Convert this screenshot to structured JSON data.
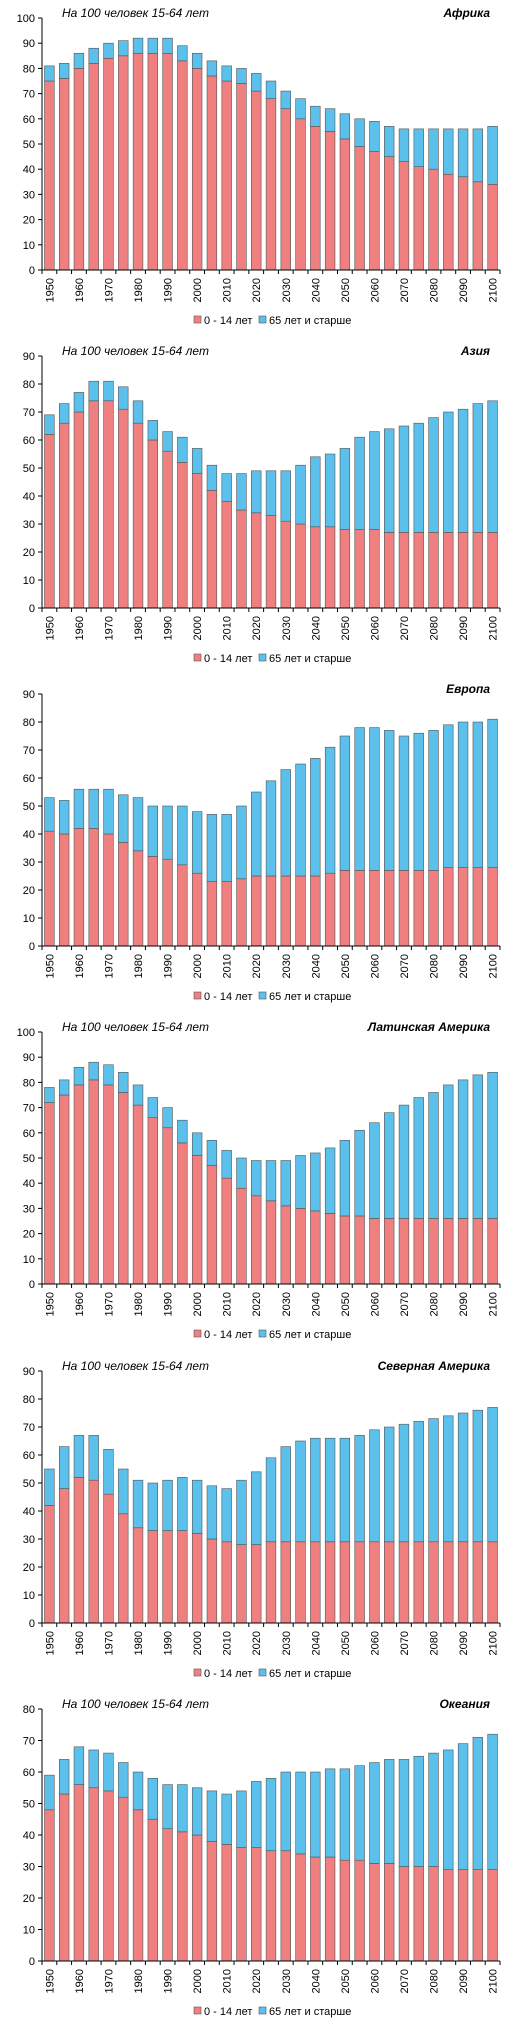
{
  "chart_data": [
    {
      "type": "bar",
      "stacked": true,
      "title": "Африка",
      "subtitle": "На 100 человек 15-64 лет",
      "ylim": [
        0,
        100
      ],
      "yticks": [
        0,
        10,
        20,
        30,
        40,
        50,
        60,
        70,
        80,
        90,
        100
      ],
      "categories": [
        "1950",
        "1955",
        "1960",
        "1965",
        "1970",
        "1975",
        "1980",
        "1985",
        "1990",
        "1995",
        "2000",
        "2005",
        "2010",
        "2015",
        "2020",
        "2025",
        "2030",
        "2035",
        "2040",
        "2045",
        "2050",
        "2055",
        "2060",
        "2065",
        "2070",
        "2075",
        "2080",
        "2085",
        "2090",
        "2095",
        "2100"
      ],
      "xticks": [
        "1950",
        "1960",
        "1970",
        "1980",
        "1990",
        "2000",
        "2010",
        "2020",
        "2030",
        "2040",
        "2050",
        "2060",
        "2070",
        "2080",
        "2090",
        "2100"
      ],
      "series": [
        {
          "name": "0 - 14 лет",
          "color": "#f08080",
          "values": [
            75,
            76,
            80,
            82,
            84,
            85,
            86,
            86,
            86,
            83,
            80,
            77,
            75,
            74,
            71,
            68,
            64,
            60,
            57,
            55,
            52,
            49,
            47,
            45,
            43,
            41,
            40,
            38,
            37,
            35,
            34
          ]
        },
        {
          "name": "65 лет  и старше",
          "color": "#5bc0eb",
          "values": [
            6,
            6,
            6,
            6,
            6,
            6,
            6,
            6,
            6,
            6,
            6,
            6,
            6,
            6,
            7,
            7,
            7,
            8,
            8,
            9,
            10,
            11,
            12,
            12,
            13,
            15,
            16,
            18,
            19,
            21,
            23
          ]
        }
      ],
      "legend_position": "bottom"
    },
    {
      "type": "bar",
      "stacked": true,
      "title": "Азия",
      "subtitle": "На 100 человек 15-64 лет",
      "ylim": [
        0,
        90
      ],
      "yticks": [
        0,
        10,
        20,
        30,
        40,
        50,
        60,
        70,
        80,
        90
      ],
      "categories": [
        "1950",
        "1955",
        "1960",
        "1965",
        "1970",
        "1975",
        "1980",
        "1985",
        "1990",
        "1995",
        "2000",
        "2005",
        "2010",
        "2015",
        "2020",
        "2025",
        "2030",
        "2035",
        "2040",
        "2045",
        "2050",
        "2055",
        "2060",
        "2065",
        "2070",
        "2075",
        "2080",
        "2085",
        "2090",
        "2095",
        "2100"
      ],
      "xticks": [
        "1950",
        "1960",
        "1970",
        "1980",
        "1990",
        "2000",
        "2010",
        "2020",
        "2030",
        "2040",
        "2050",
        "2060",
        "2070",
        "2080",
        "2090",
        "2100"
      ],
      "series": [
        {
          "name": "0 - 14 лет",
          "color": "#f08080",
          "values": [
            62,
            66,
            70,
            74,
            74,
            71,
            66,
            60,
            56,
            52,
            48,
            42,
            38,
            35,
            34,
            33,
            31,
            30,
            29,
            29,
            28,
            28,
            28,
            27,
            27,
            27,
            27,
            27,
            27,
            27,
            27
          ]
        },
        {
          "name": "65 лет  и старше",
          "color": "#5bc0eb",
          "values": [
            7,
            7,
            7,
            7,
            7,
            8,
            8,
            7,
            7,
            9,
            9,
            9,
            10,
            13,
            15,
            16,
            18,
            21,
            25,
            26,
            29,
            33,
            35,
            37,
            38,
            39,
            41,
            43,
            44,
            46,
            47
          ]
        }
      ],
      "legend_position": "bottom"
    },
    {
      "type": "bar",
      "stacked": true,
      "title": "Европа",
      "subtitle": "",
      "ylim": [
        0,
        90
      ],
      "yticks": [
        0,
        10,
        20,
        30,
        40,
        50,
        60,
        70,
        80,
        90
      ],
      "categories": [
        "1950",
        "1955",
        "1960",
        "1965",
        "1970",
        "1975",
        "1980",
        "1985",
        "1990",
        "1995",
        "2000",
        "2005",
        "2010",
        "2015",
        "2020",
        "2025",
        "2030",
        "2035",
        "2040",
        "2045",
        "2050",
        "2055",
        "2060",
        "2065",
        "2070",
        "2075",
        "2080",
        "2085",
        "2090",
        "2095",
        "2100"
      ],
      "xticks": [
        "1950",
        "1960",
        "1970",
        "1980",
        "1990",
        "2000",
        "2010",
        "2020",
        "2030",
        "2040",
        "2050",
        "2060",
        "2070",
        "2080",
        "2090",
        "2100"
      ],
      "series": [
        {
          "name": "0 - 14 лет",
          "color": "#f08080",
          "values": [
            41,
            40,
            42,
            42,
            40,
            37,
            34,
            32,
            31,
            29,
            26,
            23,
            23,
            24,
            25,
            25,
            25,
            25,
            25,
            26,
            27,
            27,
            27,
            27,
            27,
            27,
            27,
            28,
            28,
            28,
            28
          ]
        },
        {
          "name": "65 лет  и старше",
          "color": "#5bc0eb",
          "values": [
            12,
            12,
            14,
            14,
            16,
            17,
            19,
            18,
            19,
            21,
            22,
            24,
            24,
            26,
            30,
            34,
            38,
            40,
            42,
            45,
            48,
            51,
            51,
            50,
            48,
            49,
            50,
            51,
            52,
            52,
            53
          ]
        }
      ],
      "legend_position": "bottom"
    },
    {
      "type": "bar",
      "stacked": true,
      "title": "Латинская Америка",
      "subtitle": "На 100 человек 15-64 лет",
      "ylim": [
        0,
        100
      ],
      "yticks": [
        0,
        10,
        20,
        30,
        40,
        50,
        60,
        70,
        80,
        90,
        100
      ],
      "categories": [
        "1950",
        "1955",
        "1960",
        "1965",
        "1970",
        "1975",
        "1980",
        "1985",
        "1990",
        "1995",
        "2000",
        "2005",
        "2010",
        "2015",
        "2020",
        "2025",
        "2030",
        "2035",
        "2040",
        "2045",
        "2050",
        "2055",
        "2060",
        "2065",
        "2070",
        "2075",
        "2080",
        "2085",
        "2090",
        "2095",
        "2100"
      ],
      "xticks": [
        "1950",
        "1960",
        "1970",
        "1980",
        "1990",
        "2000",
        "2010",
        "2020",
        "2030",
        "2040",
        "2050",
        "2060",
        "2070",
        "2080",
        "2090",
        "2100"
      ],
      "series": [
        {
          "name": "0 - 14 лет",
          "color": "#f08080",
          "values": [
            72,
            75,
            79,
            81,
            79,
            76,
            71,
            66,
            62,
            56,
            51,
            47,
            42,
            38,
            35,
            33,
            31,
            30,
            29,
            28,
            27,
            27,
            26,
            26,
            26,
            26,
            26,
            26,
            26,
            26,
            26
          ]
        },
        {
          "name": "65 лет  и старше",
          "color": "#5bc0eb",
          "values": [
            6,
            6,
            7,
            7,
            8,
            8,
            8,
            8,
            8,
            9,
            9,
            10,
            11,
            12,
            14,
            16,
            18,
            21,
            23,
            26,
            30,
            34,
            38,
            42,
            45,
            48,
            50,
            53,
            55,
            57,
            58
          ]
        }
      ],
      "legend_position": "bottom"
    },
    {
      "type": "bar",
      "stacked": true,
      "title": "Северная Америка",
      "subtitle": "На 100 человек 15-64 лет",
      "ylim": [
        0,
        90
      ],
      "yticks": [
        0,
        10,
        20,
        30,
        40,
        50,
        60,
        70,
        80,
        90
      ],
      "categories": [
        "1950",
        "1955",
        "1960",
        "1965",
        "1970",
        "1975",
        "1980",
        "1985",
        "1990",
        "1995",
        "2000",
        "2005",
        "2010",
        "2015",
        "2020",
        "2025",
        "2030",
        "2035",
        "2040",
        "2045",
        "2050",
        "2055",
        "2060",
        "2065",
        "2070",
        "2075",
        "2080",
        "2085",
        "2090",
        "2095",
        "2100"
      ],
      "xticks": [
        "1950",
        "1960",
        "1970",
        "1980",
        "1990",
        "2000",
        "2010",
        "2020",
        "2030",
        "2040",
        "2050",
        "2060",
        "2070",
        "2080",
        "2090",
        "2100"
      ],
      "series": [
        {
          "name": "0 - 14 лет",
          "color": "#f08080",
          "values": [
            42,
            48,
            52,
            51,
            46,
            39,
            34,
            33,
            33,
            33,
            32,
            30,
            29,
            28,
            28,
            29,
            29,
            29,
            29,
            29,
            29,
            29,
            29,
            29,
            29,
            29,
            29,
            29,
            29,
            29,
            29
          ]
        },
        {
          "name": "65 лет  и старше",
          "color": "#5bc0eb",
          "values": [
            13,
            15,
            15,
            16,
            16,
            16,
            17,
            17,
            18,
            19,
            19,
            19,
            19,
            23,
            26,
            30,
            34,
            36,
            37,
            37,
            37,
            38,
            40,
            41,
            42,
            43,
            44,
            45,
            46,
            47,
            48
          ]
        }
      ],
      "legend_position": "bottom"
    },
    {
      "type": "bar",
      "stacked": true,
      "title": "Океания",
      "subtitle": "На 100 человек 15-64 лет",
      "ylim": [
        0,
        80
      ],
      "yticks": [
        0,
        10,
        20,
        30,
        40,
        50,
        60,
        70,
        80
      ],
      "categories": [
        "1950",
        "1955",
        "1960",
        "1965",
        "1970",
        "1975",
        "1980",
        "1985",
        "1990",
        "1995",
        "2000",
        "2005",
        "2010",
        "2015",
        "2020",
        "2025",
        "2030",
        "2035",
        "2040",
        "2045",
        "2050",
        "2055",
        "2060",
        "2065",
        "2070",
        "2075",
        "2080",
        "2085",
        "2090",
        "2095",
        "2100"
      ],
      "xticks": [
        "1950",
        "1960",
        "1970",
        "1980",
        "1990",
        "2000",
        "2010",
        "2020",
        "2030",
        "2040",
        "2050",
        "2060",
        "2070",
        "2080",
        "2090",
        "2100"
      ],
      "series": [
        {
          "name": "0 - 14 лет",
          "color": "#f08080",
          "values": [
            48,
            53,
            56,
            55,
            54,
            52,
            48,
            45,
            42,
            41,
            40,
            38,
            37,
            36,
            36,
            35,
            35,
            34,
            33,
            33,
            32,
            32,
            31,
            31,
            30,
            30,
            30,
            29,
            29,
            29,
            29
          ]
        },
        {
          "name": "65 лет  и старше",
          "color": "#5bc0eb",
          "values": [
            11,
            11,
            12,
            12,
            12,
            11,
            12,
            13,
            14,
            15,
            15,
            16,
            16,
            18,
            21,
            23,
            25,
            26,
            27,
            28,
            29,
            30,
            32,
            33,
            34,
            35,
            36,
            38,
            40,
            42,
            43
          ]
        }
      ],
      "legend_position": "bottom"
    }
  ]
}
